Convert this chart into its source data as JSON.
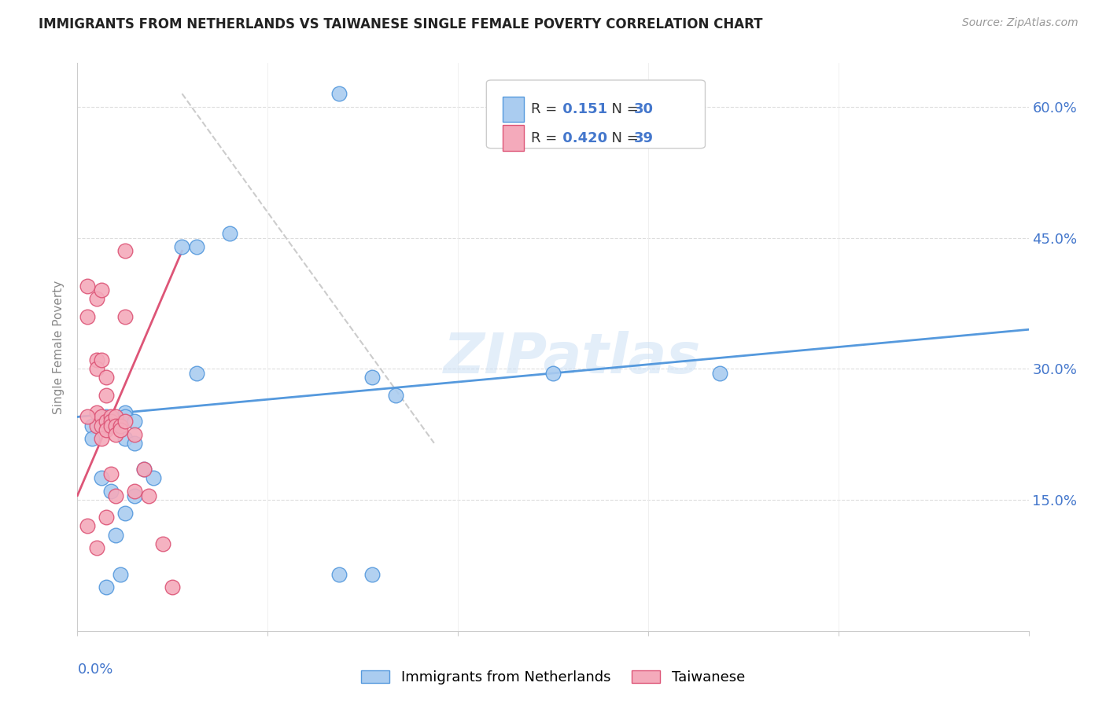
{
  "title": "IMMIGRANTS FROM NETHERLANDS VS TAIWANESE SINGLE FEMALE POVERTY CORRELATION CHART",
  "source": "Source: ZipAtlas.com",
  "ylabel": "Single Female Poverty",
  "y_ticks": [
    0.0,
    0.15,
    0.3,
    0.45,
    0.6
  ],
  "y_tick_labels": [
    "",
    "15.0%",
    "30.0%",
    "45.0%",
    "60.0%"
  ],
  "x_lim": [
    0.0,
    0.2
  ],
  "y_lim": [
    0.0,
    0.65
  ],
  "watermark": "ZIPatlas",
  "legend_r1": "R = ",
  "legend_v1": "0.151",
  "legend_n1_label": "N = ",
  "legend_n1_val": "30",
  "legend_r2": "R = ",
  "legend_v2": "0.420",
  "legend_n2_label": "N = ",
  "legend_n2_val": "39",
  "blue_color": "#aaccf0",
  "pink_color": "#f4aabb",
  "line_blue": "#5599dd",
  "line_pink": "#dd5577",
  "trend_blue_color": "#5599dd",
  "trend_pink_color": "#dd5577",
  "line_gray": "#cccccc",
  "scatter_blue_x": [
    0.025,
    0.022,
    0.025,
    0.032,
    0.01,
    0.01,
    0.012,
    0.008,
    0.006,
    0.008,
    0.01,
    0.012,
    0.014,
    0.016,
    0.012,
    0.01,
    0.008,
    0.006,
    0.055,
    0.1,
    0.062,
    0.067,
    0.003,
    0.003,
    0.005,
    0.007,
    0.009,
    0.135,
    0.055,
    0.062
  ],
  "scatter_blue_y": [
    0.44,
    0.44,
    0.295,
    0.455,
    0.25,
    0.245,
    0.24,
    0.235,
    0.245,
    0.24,
    0.22,
    0.215,
    0.185,
    0.175,
    0.155,
    0.135,
    0.11,
    0.05,
    0.615,
    0.295,
    0.29,
    0.27,
    0.235,
    0.22,
    0.175,
    0.16,
    0.065,
    0.295,
    0.065,
    0.065
  ],
  "scatter_pink_x": [
    0.004,
    0.004,
    0.004,
    0.004,
    0.004,
    0.004,
    0.005,
    0.005,
    0.005,
    0.005,
    0.005,
    0.006,
    0.006,
    0.006,
    0.006,
    0.006,
    0.007,
    0.007,
    0.007,
    0.007,
    0.008,
    0.008,
    0.008,
    0.008,
    0.009,
    0.009,
    0.01,
    0.01,
    0.01,
    0.012,
    0.012,
    0.014,
    0.015,
    0.018,
    0.02,
    0.002,
    0.002,
    0.002,
    0.002
  ],
  "scatter_pink_y": [
    0.38,
    0.31,
    0.3,
    0.25,
    0.235,
    0.095,
    0.39,
    0.31,
    0.245,
    0.235,
    0.22,
    0.29,
    0.27,
    0.24,
    0.23,
    0.13,
    0.245,
    0.24,
    0.235,
    0.18,
    0.245,
    0.235,
    0.225,
    0.155,
    0.235,
    0.23,
    0.435,
    0.36,
    0.24,
    0.225,
    0.16,
    0.185,
    0.155,
    0.1,
    0.05,
    0.395,
    0.36,
    0.245,
    0.12
  ],
  "trend_blue_x0": 0.0,
  "trend_blue_y0": 0.245,
  "trend_blue_x1": 0.2,
  "trend_blue_y1": 0.345,
  "trend_pink_x0": 0.0,
  "trend_pink_y0": 0.155,
  "trend_pink_x1": 0.022,
  "trend_pink_y1": 0.435,
  "trend_gray_x0": 0.022,
  "trend_gray_y0": 0.615,
  "trend_gray_x1": 0.075,
  "trend_gray_y1": 0.215,
  "legend_bottom_labels": [
    "Immigrants from Netherlands",
    "Taiwanese"
  ],
  "accent_blue": "#4477cc",
  "accent_pink": "#cc4466"
}
